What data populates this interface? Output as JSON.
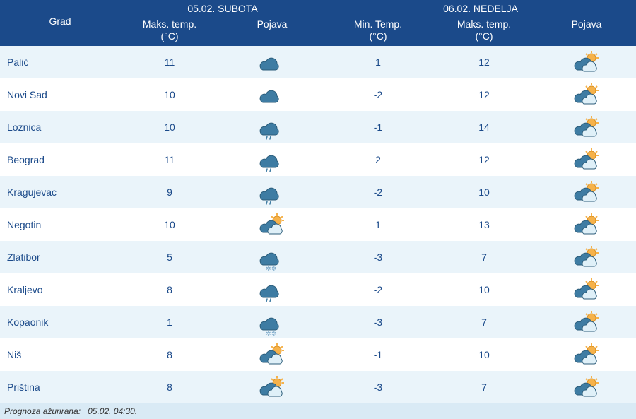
{
  "colors": {
    "header_bg": "#1b4a8a",
    "header_text": "#ffffff",
    "row_even_bg": "#eaf4fa",
    "row_odd_bg": "#ffffff",
    "text_color": "#1b4a8a",
    "footer_bg": "#d9eaf5",
    "cloud_fill": "#3e7ca3",
    "cloud_light": "#dff0f8",
    "cloud_stroke": "#2c5d7a",
    "sun_fill": "#f6b24a",
    "sun_stroke": "#d98f20",
    "snow_fill": "#7aa8c9"
  },
  "icons": {
    "cloud": "cloud",
    "cloud_rain": "cloud-rain",
    "cloud_snow": "cloud-snow",
    "partly_sunny": "partly-sunny",
    "partly_sunny_small": "partly-sunny-small"
  },
  "header": {
    "city": "Grad",
    "day1_label": "05.02. SUBOTA",
    "day1_max": "Maks. temp.",
    "day1_max_unit": "(°C)",
    "day1_icon": "Pojava",
    "day2_label": "06.02. NEDELJA",
    "day2_min": "Min. Temp.",
    "day2_min_unit": "(°C)",
    "day2_max": "Maks. temp.",
    "day2_max_unit": "(°C)",
    "day2_icon": "Pojava"
  },
  "rows": [
    {
      "city": "Palić",
      "d1_max": "11",
      "d1_icon": "cloud",
      "d2_min": "1",
      "d2_max": "12",
      "d2_icon": "partly_sunny"
    },
    {
      "city": "Novi Sad",
      "d1_max": "10",
      "d1_icon": "cloud",
      "d2_min": "-2",
      "d2_max": "12",
      "d2_icon": "partly_sunny"
    },
    {
      "city": "Loznica",
      "d1_max": "10",
      "d1_icon": "cloud_rain",
      "d2_min": "-1",
      "d2_max": "14",
      "d2_icon": "partly_sunny_small"
    },
    {
      "city": "Beograd",
      "d1_max": "11",
      "d1_icon": "cloud_rain",
      "d2_min": "2",
      "d2_max": "12",
      "d2_icon": "partly_sunny_small"
    },
    {
      "city": "Kragujevac",
      "d1_max": "9",
      "d1_icon": "cloud_rain",
      "d2_min": "-2",
      "d2_max": "10",
      "d2_icon": "partly_sunny_small"
    },
    {
      "city": "Negotin",
      "d1_max": "10",
      "d1_icon": "partly_sunny",
      "d2_min": "1",
      "d2_max": "13",
      "d2_icon": "partly_sunny_small"
    },
    {
      "city": "Zlatibor",
      "d1_max": "5",
      "d1_icon": "cloud_snow",
      "d2_min": "-3",
      "d2_max": "7",
      "d2_icon": "partly_sunny_small"
    },
    {
      "city": "Kraljevo",
      "d1_max": "8",
      "d1_icon": "cloud_rain",
      "d2_min": "-2",
      "d2_max": "10",
      "d2_icon": "partly_sunny_small"
    },
    {
      "city": "Kopaonik",
      "d1_max": "1",
      "d1_icon": "cloud_snow",
      "d2_min": "-3",
      "d2_max": "7",
      "d2_icon": "partly_sunny_small"
    },
    {
      "city": "Niš",
      "d1_max": "8",
      "d1_icon": "partly_sunny",
      "d2_min": "-1",
      "d2_max": "10",
      "d2_icon": "partly_sunny_small"
    },
    {
      "city": "Priština",
      "d1_max": "8",
      "d1_icon": "partly_sunny",
      "d2_min": "-3",
      "d2_max": "7",
      "d2_icon": "partly_sunny_small"
    }
  ],
  "footer": {
    "label": "Prognoza ažurirana:",
    "value": "05.02. 04:30."
  }
}
